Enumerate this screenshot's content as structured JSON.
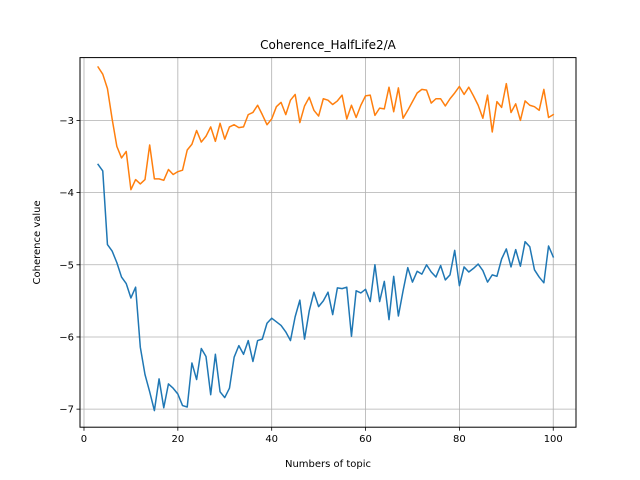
{
  "chart_data": {
    "type": "line",
    "title": "Coherence_HalfLife2/A",
    "xlabel": "Numbers of topic",
    "ylabel": "Coherence value",
    "xlim": [
      -0.85,
      104.85
    ],
    "ylim": [
      -7.25,
      -2.13
    ],
    "xticks": [
      0,
      20,
      40,
      60,
      80,
      100
    ],
    "yticks": [
      -7,
      -6,
      -5,
      -4,
      -3
    ],
    "ytick_labels": [
      "−7",
      "−6",
      "−5",
      "−4",
      "−3"
    ],
    "grid": true,
    "x": [
      3,
      4,
      5,
      6,
      7,
      8,
      9,
      10,
      11,
      12,
      13,
      14,
      15,
      16,
      17,
      18,
      19,
      20,
      21,
      22,
      23,
      24,
      25,
      26,
      27,
      28,
      29,
      30,
      31,
      32,
      33,
      34,
      35,
      36,
      37,
      38,
      39,
      40,
      41,
      42,
      43,
      44,
      45,
      46,
      47,
      48,
      49,
      50,
      51,
      52,
      53,
      54,
      55,
      56,
      57,
      58,
      59,
      60,
      61,
      62,
      63,
      64,
      65,
      66,
      67,
      68,
      69,
      70,
      71,
      72,
      73,
      74,
      75,
      76,
      77,
      78,
      79,
      80,
      81,
      82,
      83,
      84,
      85,
      86,
      87,
      88,
      89,
      90,
      91,
      92,
      93,
      94,
      95,
      96,
      97,
      98,
      99,
      100
    ],
    "series": [
      {
        "color": "#1f77b4",
        "values": [
          -3.61,
          -3.7,
          -4.72,
          -4.81,
          -4.97,
          -5.17,
          -5.26,
          -5.46,
          -5.31,
          -6.14,
          -6.52,
          -6.76,
          -7.02,
          -6.58,
          -6.98,
          -6.65,
          -6.71,
          -6.79,
          -6.95,
          -6.97,
          -6.36,
          -6.59,
          -6.16,
          -6.27,
          -6.8,
          -6.24,
          -6.76,
          -6.84,
          -6.71,
          -6.28,
          -6.12,
          -6.24,
          -6.05,
          -6.34,
          -6.05,
          -6.03,
          -5.81,
          -5.74,
          -5.79,
          -5.84,
          -5.93,
          -6.05,
          -5.72,
          -5.49,
          -6.03,
          -5.64,
          -5.38,
          -5.58,
          -5.5,
          -5.38,
          -5.69,
          -5.32,
          -5.33,
          -5.31,
          -5.99,
          -5.36,
          -5.39,
          -5.34,
          -5.51,
          -5.0,
          -5.51,
          -5.23,
          -5.76,
          -5.16,
          -5.71,
          -5.36,
          -5.04,
          -5.24,
          -5.09,
          -5.13,
          -5.0,
          -5.1,
          -5.17,
          -5.01,
          -5.21,
          -5.14,
          -4.8,
          -5.29,
          -5.03,
          -5.1,
          -5.05,
          -4.99,
          -5.08,
          -5.24,
          -5.14,
          -5.16,
          -4.92,
          -4.78,
          -5.03,
          -4.79,
          -5.02,
          -4.68,
          -4.75,
          -5.07,
          -5.17,
          -5.25,
          -4.74,
          -4.89
        ]
      },
      {
        "color": "#ff7f0e",
        "values": [
          -2.26,
          -2.36,
          -2.56,
          -2.98,
          -3.36,
          -3.52,
          -3.43,
          -3.96,
          -3.82,
          -3.88,
          -3.82,
          -3.34,
          -3.81,
          -3.81,
          -3.83,
          -3.68,
          -3.75,
          -3.71,
          -3.69,
          -3.41,
          -3.33,
          -3.14,
          -3.3,
          -3.22,
          -3.09,
          -3.29,
          -3.04,
          -3.26,
          -3.09,
          -3.06,
          -3.1,
          -3.09,
          -2.92,
          -2.89,
          -2.79,
          -2.92,
          -3.06,
          -2.98,
          -2.81,
          -2.75,
          -2.92,
          -2.72,
          -2.64,
          -3.03,
          -2.8,
          -2.68,
          -2.86,
          -2.94,
          -2.7,
          -2.72,
          -2.78,
          -2.73,
          -2.65,
          -2.98,
          -2.79,
          -2.96,
          -2.79,
          -2.66,
          -2.65,
          -2.93,
          -2.83,
          -2.84,
          -2.54,
          -2.88,
          -2.55,
          -2.97,
          -2.86,
          -2.74,
          -2.62,
          -2.57,
          -2.58,
          -2.76,
          -2.7,
          -2.7,
          -2.8,
          -2.7,
          -2.62,
          -2.53,
          -2.64,
          -2.54,
          -2.66,
          -2.79,
          -2.97,
          -2.65,
          -3.16,
          -2.74,
          -2.82,
          -2.49,
          -2.89,
          -2.77,
          -3.0,
          -2.73,
          -2.79,
          -2.81,
          -2.86,
          -2.57,
          -2.96,
          -2.92
        ]
      }
    ]
  }
}
